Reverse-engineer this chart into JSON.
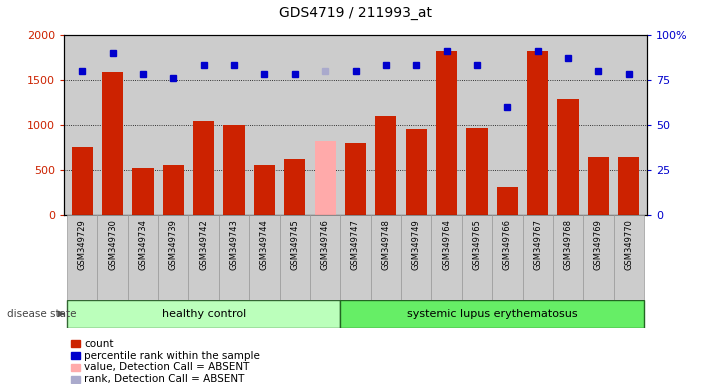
{
  "title": "GDS4719 / 211993_at",
  "samples": [
    "GSM349729",
    "GSM349730",
    "GSM349734",
    "GSM349739",
    "GSM349742",
    "GSM349743",
    "GSM349744",
    "GSM349745",
    "GSM349746",
    "GSM349747",
    "GSM349748",
    "GSM349749",
    "GSM349764",
    "GSM349765",
    "GSM349766",
    "GSM349767",
    "GSM349768",
    "GSM349769",
    "GSM349770"
  ],
  "bar_values": [
    750,
    1590,
    520,
    560,
    1040,
    1000,
    560,
    620,
    820,
    800,
    1100,
    950,
    1820,
    960,
    310,
    1820,
    1290,
    640,
    640
  ],
  "bar_absent": [
    false,
    false,
    false,
    false,
    false,
    false,
    false,
    false,
    true,
    false,
    false,
    false,
    false,
    false,
    false,
    false,
    false,
    false,
    false
  ],
  "percentile_values": [
    80,
    90,
    78,
    76,
    83,
    83,
    78,
    78,
    80,
    80,
    83,
    83,
    91,
    83,
    60,
    91,
    87,
    80,
    78
  ],
  "percentile_absent": [
    false,
    false,
    false,
    false,
    false,
    false,
    false,
    false,
    true,
    false,
    false,
    false,
    false,
    false,
    false,
    false,
    false,
    false,
    false
  ],
  "group_labels": [
    "healthy control",
    "systemic lupus erythematosus"
  ],
  "healthy_count": 9,
  "bar_color_normal": "#cc2200",
  "bar_color_absent": "#ffaaaa",
  "dot_color_normal": "#0000cc",
  "dot_color_absent": "#aaaacc",
  "group_color_healthy": "#bbffbb",
  "group_color_lupus": "#66ee66",
  "ylim_left": [
    0,
    2000
  ],
  "ylim_right": [
    0,
    100
  ],
  "yticks_left": [
    0,
    500,
    1000,
    1500,
    2000
  ],
  "yticks_right": [
    0,
    25,
    50,
    75,
    100
  ],
  "bg_color": "#cccccc",
  "label_bg_color": "#cccccc",
  "legend_items": [
    {
      "label": "count",
      "color": "#cc2200"
    },
    {
      "label": "percentile rank within the sample",
      "color": "#0000cc"
    },
    {
      "label": "value, Detection Call = ABSENT",
      "color": "#ffaaaa"
    },
    {
      "label": "rank, Detection Call = ABSENT",
      "color": "#aaaacc"
    }
  ]
}
